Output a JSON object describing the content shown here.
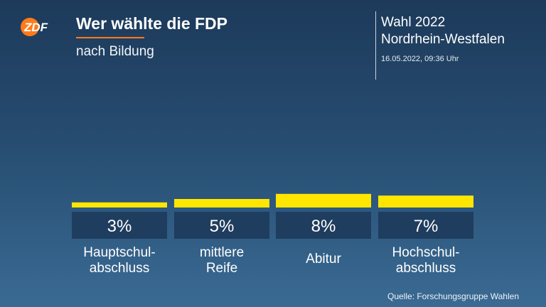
{
  "header": {
    "logo_text": "ZDF",
    "title": "Wer wählte die FDP",
    "subtitle": "nach Bildung",
    "election_line1": "Wahl 2022",
    "election_line2": "Nordrhein-Westfalen",
    "timestamp": "16.05.2022, 09:36 Uhr"
  },
  "colors": {
    "bar": "#ffe600",
    "value_box": "#1f3d5e",
    "accent": "#ff7a1a"
  },
  "chart_data": {
    "type": "bar",
    "title": "Wer wählte die FDP",
    "subtitle": "nach Bildung",
    "categories": [
      [
        "Hauptschul-",
        "abschluss"
      ],
      [
        "mittlere",
        "Reife"
      ],
      [
        "Abitur"
      ],
      [
        "Hochschul-",
        "abschluss"
      ]
    ],
    "values": [
      3,
      5,
      8,
      7
    ],
    "value_labels": [
      "3%",
      "5%",
      "8%",
      "7%"
    ],
    "unit": "%",
    "ylim": [
      0,
      12
    ],
    "grid": false
  },
  "source": "Quelle: Forschungsgruppe Wahlen"
}
